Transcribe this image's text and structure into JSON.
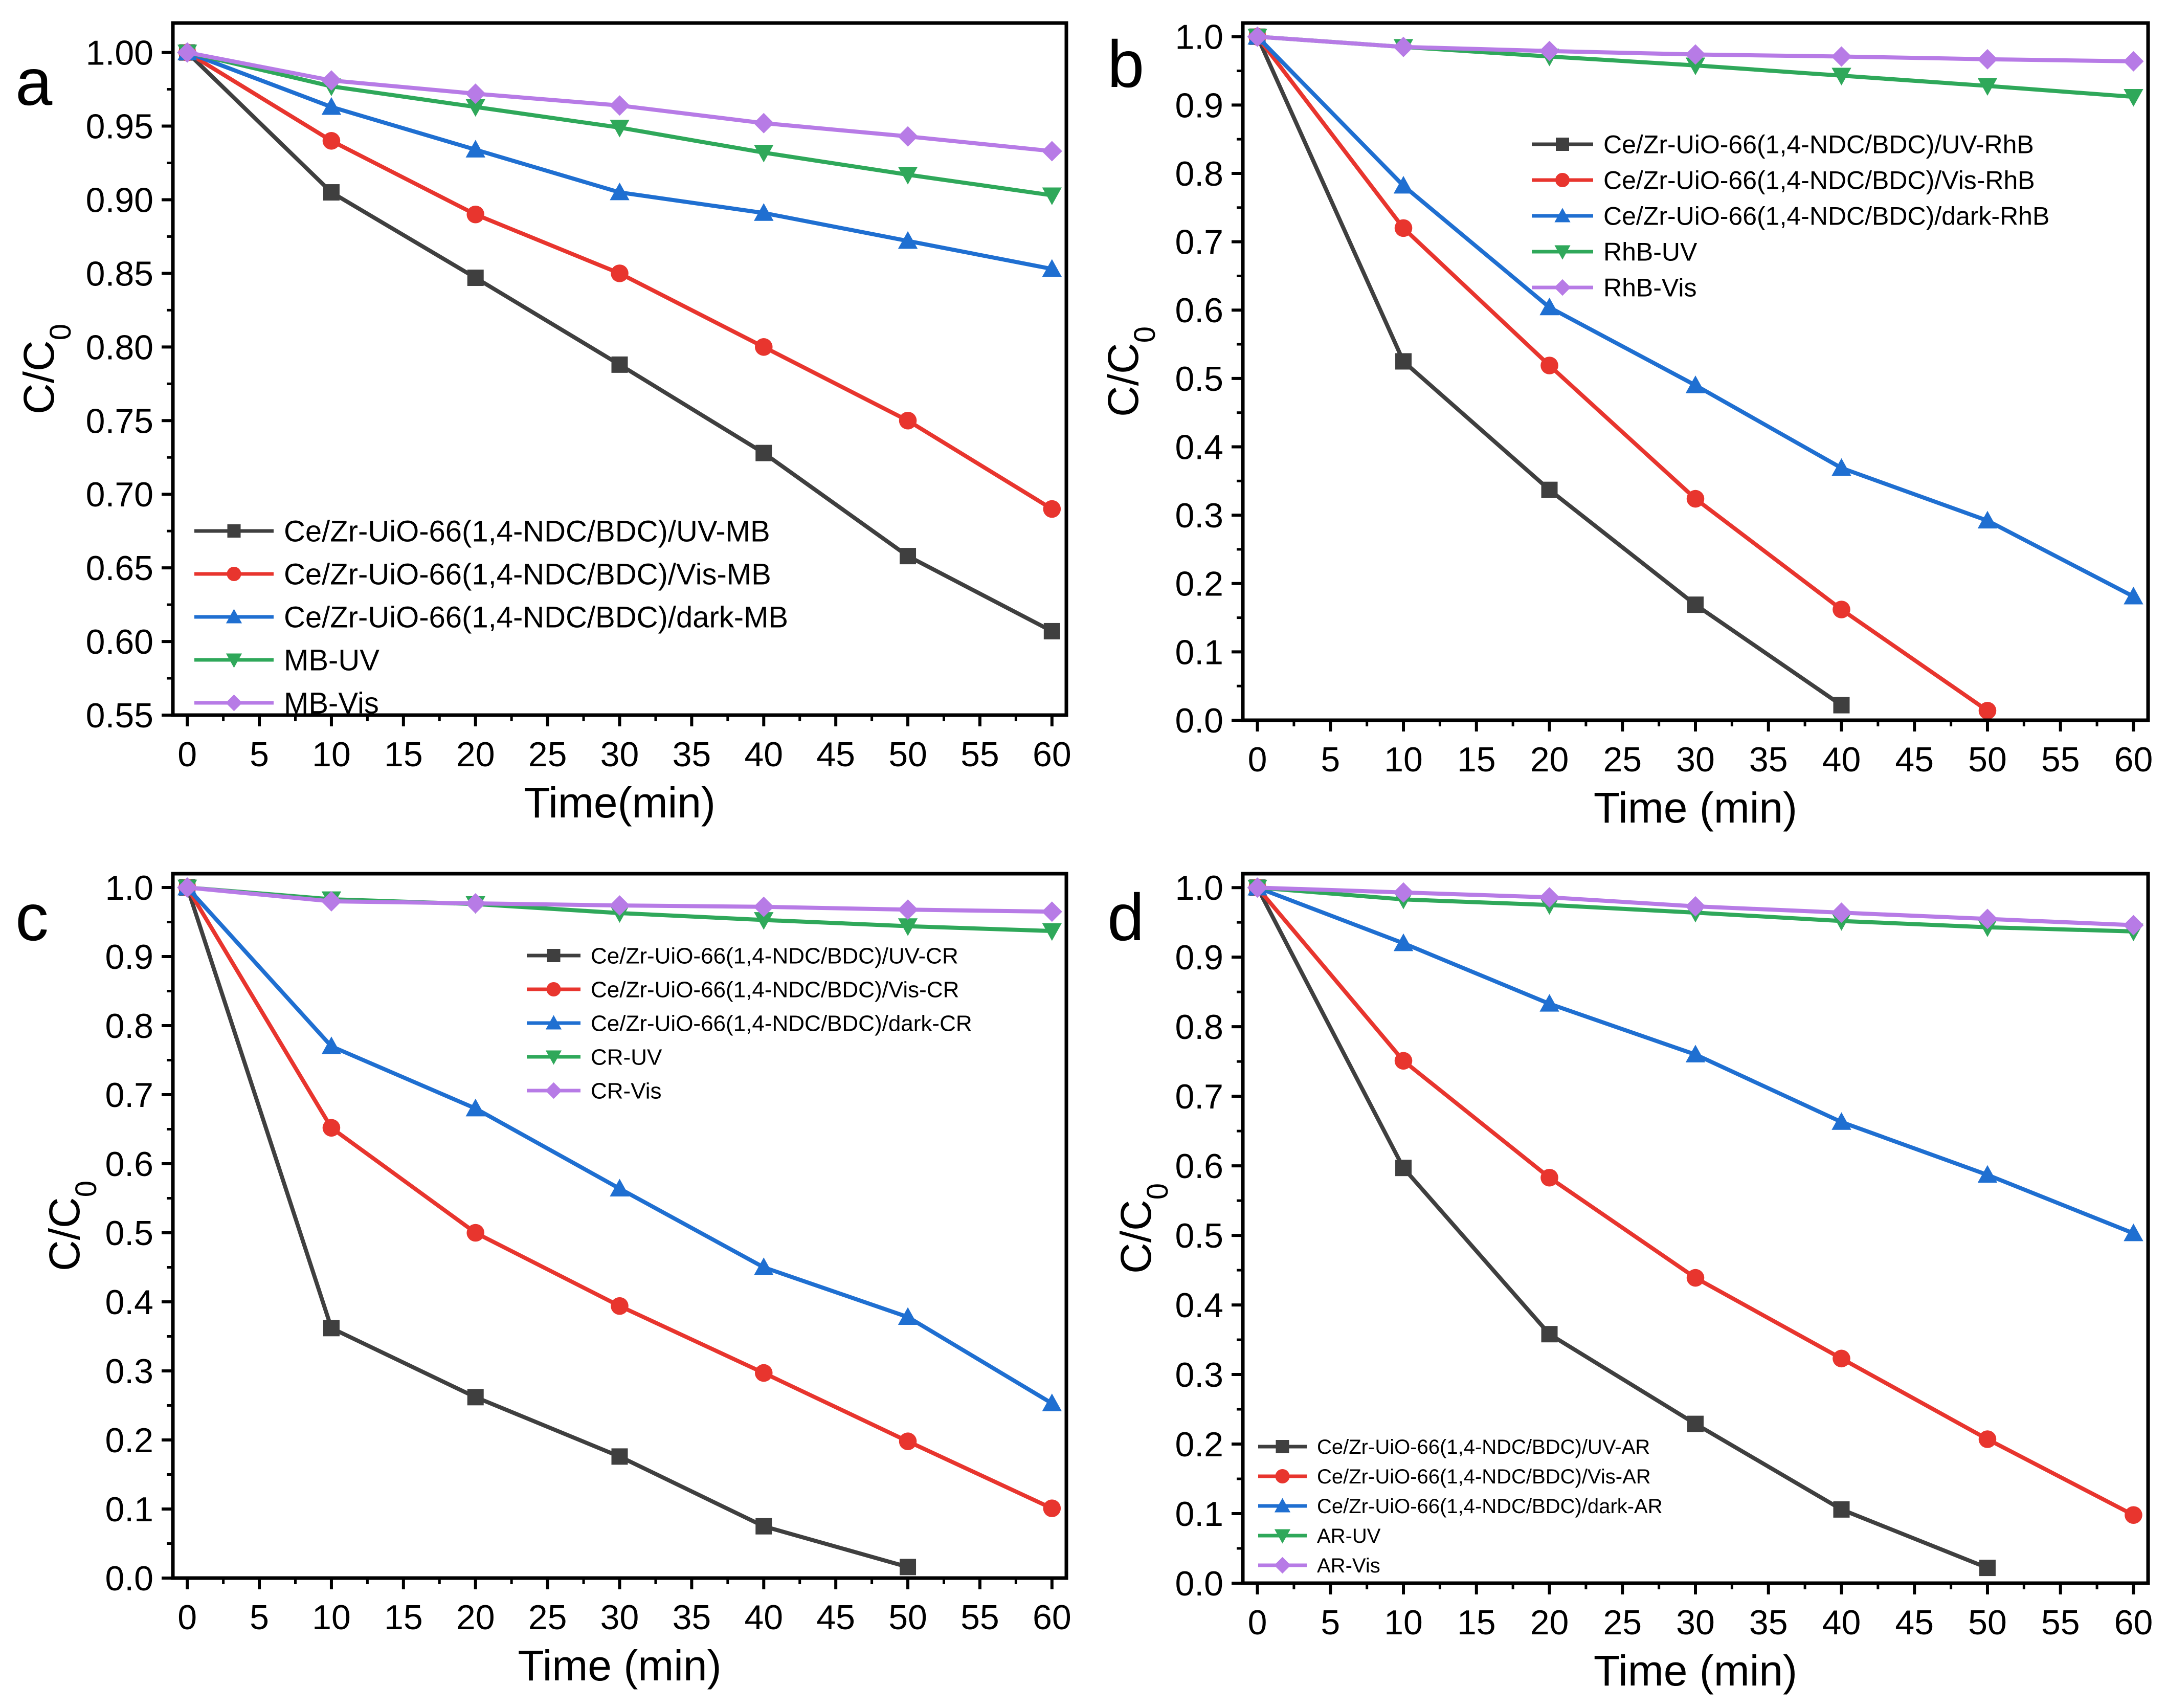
{
  "figure": {
    "panels": [
      "a",
      "b",
      "c",
      "d"
    ],
    "marker_shapes": [
      "square",
      "circle",
      "triangle-up",
      "triangle-down",
      "diamond"
    ],
    "series_colors": [
      "#3f3f3f",
      "#e8352e",
      "#1f6fd1",
      "#2fa85a",
      "#b77be6"
    ]
  },
  "chart_data": [
    {
      "type": "line",
      "panel_label": "a",
      "xlabel": "Time(min)",
      "ylabel": "C/C0",
      "ylabel_main": "C/C",
      "ylabel_sub": "0",
      "xlim": [
        -1,
        61
      ],
      "ylim": [
        0.55,
        1.02
      ],
      "xticks": [
        0,
        5,
        10,
        15,
        20,
        25,
        30,
        35,
        40,
        45,
        50,
        55,
        60
      ],
      "yticks": [
        0.55,
        0.6,
        0.65,
        0.7,
        0.75,
        0.8,
        0.85,
        0.9,
        0.95,
        1.0
      ],
      "yticks_text": [
        "0.55",
        "0.60",
        "0.65",
        "0.70",
        "0.75",
        "0.80",
        "0.85",
        "0.90",
        "0.95",
        "1.00"
      ],
      "legend_position": "bottom-left",
      "legend_font_size": "medium",
      "series": [
        {
          "name": "Ce/Zr-UiO-66(1,4-NDC/BDC)/UV-MB",
          "x": [
            0,
            10,
            20,
            30,
            40,
            50,
            60
          ],
          "y": [
            1.0,
            0.905,
            0.847,
            0.788,
            0.728,
            0.658,
            0.607
          ]
        },
        {
          "name": "Ce/Zr-UiO-66(1,4-NDC/BDC)/Vis-MB",
          "x": [
            0,
            10,
            20,
            30,
            40,
            50,
            60
          ],
          "y": [
            1.0,
            0.94,
            0.89,
            0.85,
            0.8,
            0.75,
            0.69
          ]
        },
        {
          "name": "Ce/Zr-UiO-66(1,4-NDC/BDC)/dark-MB",
          "x": [
            0,
            10,
            20,
            30,
            40,
            50,
            60
          ],
          "y": [
            1.0,
            0.963,
            0.934,
            0.905,
            0.891,
            0.872,
            0.853
          ]
        },
        {
          "name": "MB-UV",
          "x": [
            0,
            10,
            20,
            30,
            40,
            50,
            60
          ],
          "y": [
            1.0,
            0.977,
            0.963,
            0.949,
            0.932,
            0.917,
            0.903
          ]
        },
        {
          "name": "MB-Vis",
          "x": [
            0,
            10,
            20,
            30,
            40,
            50,
            60
          ],
          "y": [
            1.0,
            0.981,
            0.972,
            0.964,
            0.952,
            0.943,
            0.933
          ]
        }
      ]
    },
    {
      "type": "line",
      "panel_label": "b",
      "xlabel": "Time (min)",
      "ylabel": "C/C0",
      "ylabel_main": "C/C",
      "ylabel_sub": "0",
      "xlim": [
        -1,
        61
      ],
      "ylim": [
        0,
        1.02
      ],
      "xticks": [
        0,
        5,
        10,
        15,
        20,
        25,
        30,
        35,
        40,
        45,
        50,
        55,
        60
      ],
      "yticks": [
        0,
        0.1,
        0.2,
        0.3,
        0.4,
        0.5,
        0.6,
        0.7,
        0.8,
        0.9,
        1.0
      ],
      "yticks_text": [
        "0.0",
        "0.1",
        "0.2",
        "0.3",
        "0.4",
        "0.5",
        "0.6",
        "0.7",
        "0.8",
        "0.9",
        "1.0"
      ],
      "legend_position": "upper-right",
      "legend_font_size": "medium",
      "series": [
        {
          "name": "Ce/Zr-UiO-66(1,4-NDC/BDC)/UV-RhB",
          "x": [
            0,
            10,
            20,
            30,
            40
          ],
          "y": [
            1.0,
            0.525,
            0.337,
            0.169,
            0.022
          ]
        },
        {
          "name": "Ce/Zr-UiO-66(1,4-NDC/BDC)/Vis-RhB",
          "x": [
            0,
            10,
            20,
            30,
            40,
            50
          ],
          "y": [
            1.0,
            0.72,
            0.519,
            0.324,
            0.162,
            0.014
          ]
        },
        {
          "name": "Ce/Zr-UiO-66(1,4-NDC/BDC)/dark-RhB",
          "x": [
            0,
            10,
            20,
            30,
            40,
            50,
            60
          ],
          "y": [
            1.0,
            0.782,
            0.604,
            0.49,
            0.369,
            0.292,
            0.181
          ]
        },
        {
          "name": "RhB-UV",
          "x": [
            0,
            10,
            20,
            30,
            40,
            50,
            60
          ],
          "y": [
            1.0,
            0.985,
            0.971,
            0.958,
            0.943,
            0.928,
            0.912
          ]
        },
        {
          "name": "RhB-Vis",
          "x": [
            0,
            10,
            20,
            30,
            40,
            50,
            60
          ],
          "y": [
            1.0,
            0.985,
            0.979,
            0.974,
            0.971,
            0.967,
            0.964
          ]
        }
      ]
    },
    {
      "type": "line",
      "panel_label": "c",
      "xlabel": "Time (min)",
      "ylabel": "C/C0",
      "ylabel_main": "C/C",
      "ylabel_sub": "0",
      "xlim": [
        -1,
        61
      ],
      "ylim": [
        0,
        1.02
      ],
      "xticks": [
        0,
        5,
        10,
        15,
        20,
        25,
        30,
        35,
        40,
        45,
        50,
        55,
        60
      ],
      "yticks": [
        0,
        0.1,
        0.2,
        0.3,
        0.4,
        0.5,
        0.6,
        0.7,
        0.8,
        0.9,
        1.0
      ],
      "yticks_text": [
        "0.0",
        "0.1",
        "0.2",
        "0.3",
        "0.4",
        "0.5",
        "0.6",
        "0.7",
        "0.8",
        "0.9",
        "1.0"
      ],
      "legend_position": "upper-right",
      "legend_font_size": "small",
      "series": [
        {
          "name": "Ce/Zr-UiO-66(1,4-NDC/BDC)/UV-CR",
          "x": [
            0,
            10,
            20,
            30,
            40,
            50
          ],
          "y": [
            1.0,
            0.362,
            0.262,
            0.176,
            0.075,
            0.016
          ]
        },
        {
          "name": "Ce/Zr-UiO-66(1,4-NDC/BDC)/Vis-CR",
          "x": [
            0,
            10,
            20,
            30,
            40,
            50,
            60
          ],
          "y": [
            1.0,
            0.652,
            0.5,
            0.394,
            0.297,
            0.198,
            0.101
          ]
        },
        {
          "name": "Ce/Zr-UiO-66(1,4-NDC/BDC)/dark-CR",
          "x": [
            0,
            10,
            20,
            30,
            40,
            50,
            60
          ],
          "y": [
            1.0,
            0.77,
            0.68,
            0.564,
            0.45,
            0.378,
            0.253
          ]
        },
        {
          "name": "CR-UV",
          "x": [
            0,
            10,
            20,
            30,
            40,
            50,
            60
          ],
          "y": [
            1.0,
            0.983,
            0.976,
            0.963,
            0.953,
            0.944,
            0.937
          ]
        },
        {
          "name": "CR-Vis",
          "x": [
            0,
            10,
            20,
            30,
            40,
            50,
            60
          ],
          "y": [
            1.0,
            0.98,
            0.977,
            0.974,
            0.972,
            0.968,
            0.965
          ]
        }
      ]
    },
    {
      "type": "line",
      "panel_label": "d",
      "xlabel": "Time (min)",
      "ylabel": "C/C0",
      "ylabel_main": "C/C",
      "ylabel_sub": "0",
      "xlim": [
        -1,
        61
      ],
      "ylim": [
        0,
        1.02
      ],
      "xticks": [
        0,
        5,
        10,
        15,
        20,
        25,
        30,
        35,
        40,
        45,
        50,
        55,
        60
      ],
      "yticks": [
        0,
        0.1,
        0.2,
        0.3,
        0.4,
        0.5,
        0.6,
        0.7,
        0.8,
        0.9,
        1.0
      ],
      "yticks_text": [
        "0.0",
        "0.1",
        "0.2",
        "0.3",
        "0.4",
        "0.5",
        "0.6",
        "0.7",
        "0.8",
        "0.9",
        "1.0"
      ],
      "legend_position": "bottom-left",
      "legend_font_size": "small",
      "series": [
        {
          "name": "Ce/Zr-UiO-66(1,4-NDC/BDC)/UV-AR",
          "x": [
            0,
            10,
            20,
            30,
            40,
            50
          ],
          "y": [
            1.0,
            0.597,
            0.358,
            0.229,
            0.106,
            0.022
          ]
        },
        {
          "name": "Ce/Zr-UiO-66(1,4-NDC/BDC)/Vis-AR",
          "x": [
            0,
            10,
            20,
            30,
            40,
            50,
            60
          ],
          "y": [
            1.0,
            0.751,
            0.583,
            0.439,
            0.323,
            0.207,
            0.098
          ]
        },
        {
          "name": "Ce/Zr-UiO-66(1,4-NDC/BDC)/dark-AR",
          "x": [
            0,
            10,
            20,
            30,
            40,
            50,
            60
          ],
          "y": [
            1.0,
            0.92,
            0.833,
            0.76,
            0.663,
            0.587,
            0.503
          ]
        },
        {
          "name": "AR-UV",
          "x": [
            0,
            10,
            20,
            30,
            40,
            50,
            60
          ],
          "y": [
            1.0,
            0.983,
            0.975,
            0.964,
            0.952,
            0.943,
            0.937
          ]
        },
        {
          "name": "AR-Vis",
          "x": [
            0,
            10,
            20,
            30,
            40,
            50,
            60
          ],
          "y": [
            1.0,
            0.993,
            0.986,
            0.973,
            0.964,
            0.955,
            0.946
          ]
        }
      ]
    }
  ]
}
